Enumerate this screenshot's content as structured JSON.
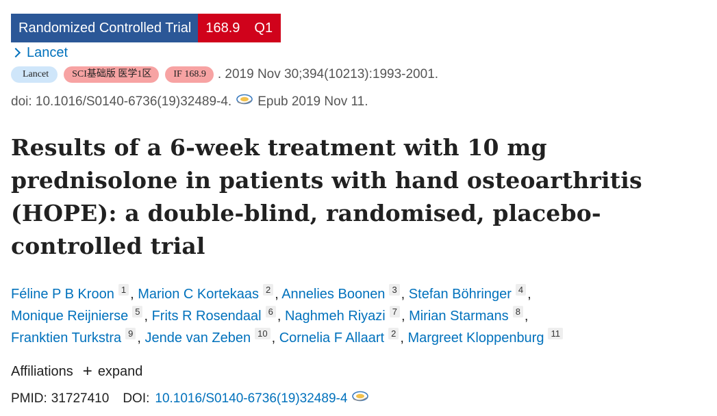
{
  "header": {
    "article_type": "Randomized Controlled Trial",
    "impact_factor": "168.9",
    "quartile": "Q1",
    "journal_link": "Lancet"
  },
  "citation": {
    "journal_pill": "Lancet",
    "sci_pill": "SCI基础版 医学1区",
    "if_pill": "IF 168.9",
    "source": ". 2019 Nov 30;394(10213):1993-2001.",
    "doi": "doi: 10.1016/S0140-6736(19)32489-4.",
    "epub": "Epub 2019 Nov 11.",
    "fulltext_icon": "fulltext-link-icon"
  },
  "title_lines": [
    "Results of a 6-week treatment with 10 mg",
    "prednisolone in patients with hand osteoarthritis",
    "(HOPE): a double-blind, randomised, placebo-",
    "controlled trial"
  ],
  "authors": [
    [
      {
        "name": "Féline P B Kroon",
        "aff": "1",
        "sep": ","
      },
      {
        "name": "Marion C Kortekaas",
        "aff": "2",
        "sep": ","
      },
      {
        "name": "Annelies Boonen",
        "aff": "3",
        "sep": ","
      },
      {
        "name": "Stefan Böhringer",
        "aff": "4",
        "sep": ","
      }
    ],
    [
      {
        "name": "Monique Reijnierse",
        "aff": "5",
        "sep": ","
      },
      {
        "name": "Frits R Rosendaal",
        "aff": "6",
        "sep": ","
      },
      {
        "name": "Naghmeh Riyazi",
        "aff": "7",
        "sep": ","
      },
      {
        "name": "Mirian Starmans",
        "aff": "8",
        "sep": ","
      }
    ],
    [
      {
        "name": "Franktien Turkstra",
        "aff": "9",
        "sep": ","
      },
      {
        "name": "Jende van Zeben",
        "aff": "10",
        "sep": ","
      },
      {
        "name": "Cornelia F Allaart",
        "aff": "2",
        "sep": ","
      },
      {
        "name": "Margreet Kloppenburg",
        "aff": "11",
        "sep": ""
      }
    ]
  ],
  "affiliations": {
    "label": "Affiliations",
    "expand_label": "expand"
  },
  "identifiers": {
    "pmid_label": "PMID:",
    "pmid": "31727410",
    "doi_label": "DOI:",
    "doi": "10.1016/S0140-6736(19)32489-4"
  },
  "colors": {
    "type_badge": "#2b5797",
    "if_badge": "#d0021b",
    "link": "#0071bc"
  }
}
